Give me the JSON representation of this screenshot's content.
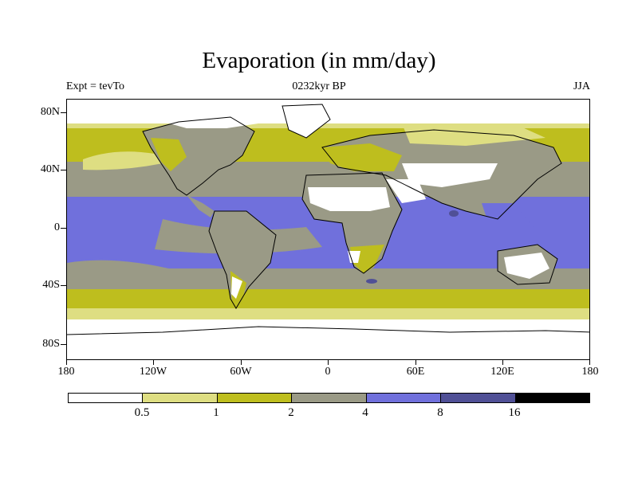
{
  "title": "Evaporation (in mm/day)",
  "subtitle_left": "Expt = tevTo",
  "subtitle_center": "0232kyr BP",
  "subtitle_right": "JJA",
  "lat_labels": [
    "80N",
    "40N",
    "0",
    "40S",
    "80S"
  ],
  "lon_labels": [
    "180",
    "120W",
    "60W",
    "0",
    "60E",
    "120E",
    "180"
  ],
  "colorbar": {
    "labels": [
      "0.5",
      "1",
      "2",
      "4",
      "8",
      "16"
    ],
    "colors": [
      "#ffffff",
      "#dede82",
      "#bebe1e",
      "#9a9a86",
      "#7070dc",
      "#505096",
      "#000000"
    ]
  },
  "map_colors": {
    "white": "#ffffff",
    "light_yellow": "#dede82",
    "olive": "#bebe1e",
    "gray": "#9a9a86",
    "blue": "#7070dc",
    "dark_blue": "#505096",
    "coast": "#000000"
  }
}
